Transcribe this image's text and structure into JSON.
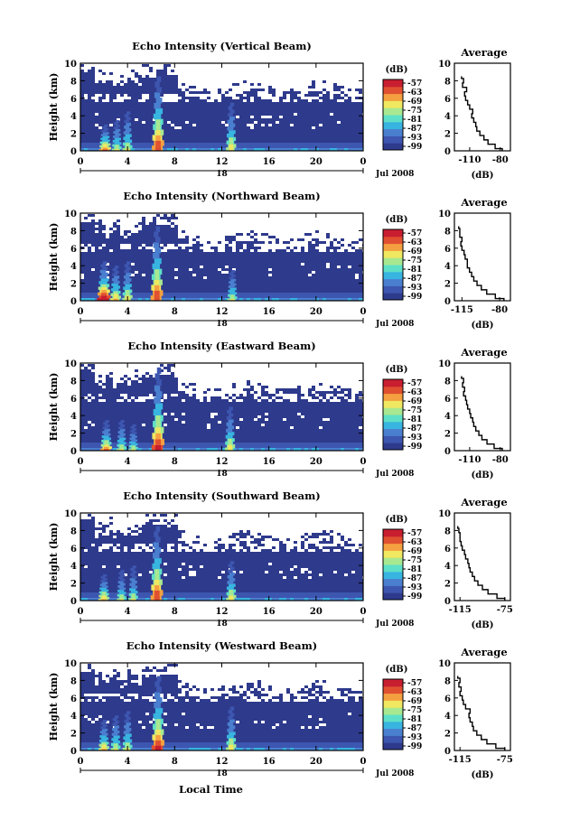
{
  "figure": {
    "xlabel": "Local Time",
    "date_label": "Jul 2008",
    "day_label": "18",
    "avg_title": "Average",
    "colorbar_unit": "(dB)",
    "avg_xlabel": "(dB)"
  },
  "colors": {
    "background": "#ffffff",
    "noise_floor": "#2e3a8c",
    "colormap": [
      "#2e3a8c",
      "#3d56b0",
      "#4a7fd0",
      "#38b4e0",
      "#5ee0c8",
      "#a8e890",
      "#f0e860",
      "#f4a040",
      "#e05030",
      "#c81e30"
    ]
  },
  "chart_data": [
    {
      "type": "heatmap",
      "title": "Echo Intensity (Vertical Beam)",
      "ylabel": "Height (km)",
      "xlim": [
        0,
        24
      ],
      "ylim": [
        0,
        10
      ],
      "xticks": [
        "0",
        "4",
        "8",
        "12",
        "16",
        "20",
        "0"
      ],
      "yticks": [
        "0",
        "2",
        "4",
        "6",
        "8",
        "10"
      ],
      "colorbar": {
        "unit": "(dB)",
        "ticks": [
          "-57",
          "-63",
          "-69",
          "-75",
          "-81",
          "-87",
          "-93",
          "-99"
        ]
      },
      "features": [
        {
          "time": 2.1,
          "top": 3.0,
          "strength": 0.75
        },
        {
          "time": 3.1,
          "top": 3.5,
          "strength": 0.5
        },
        {
          "time": 4.0,
          "top": 4.5,
          "strength": 0.5
        },
        {
          "time": 6.6,
          "top": 8.5,
          "strength": 0.8
        },
        {
          "time": 12.8,
          "top": 5.5,
          "strength": 0.55
        }
      ],
      "average_profile": {
        "title": "Average",
        "xlabel": "(dB)",
        "xticks": [
          "-110",
          "-80"
        ],
        "xlim": [
          -125,
          -70
        ],
        "height": [
          0,
          0.5,
          1,
          1.5,
          2,
          2.5,
          3,
          3.5,
          4,
          4.5,
          5,
          5.5,
          6,
          6.5,
          7,
          7.5,
          8,
          8.5
        ],
        "value": [
          -78,
          -85,
          -92,
          -96,
          -100,
          -103,
          -104,
          -106,
          -108,
          -107,
          -110,
          -112,
          -114,
          -115,
          -113,
          -117,
          -116,
          -118
        ]
      }
    },
    {
      "type": "heatmap",
      "title": "Echo Intensity (Northward Beam)",
      "ylabel": "Height (km)",
      "xlim": [
        0,
        24
      ],
      "ylim": [
        0,
        10
      ],
      "xticks": [
        "0",
        "4",
        "8",
        "12",
        "16",
        "20",
        "0"
      ],
      "yticks": [
        "0",
        "2",
        "4",
        "6",
        "8",
        "10"
      ],
      "colorbar": {
        "unit": "(dB)",
        "ticks": [
          "-57",
          "-63",
          "-69",
          "-75",
          "-81",
          "-87",
          "-93",
          "-99"
        ]
      },
      "features": [
        {
          "time": 2.0,
          "top": 4.5,
          "strength": 0.95
        },
        {
          "time": 3.0,
          "top": 4.0,
          "strength": 0.6
        },
        {
          "time": 4.0,
          "top": 4.5,
          "strength": 0.55
        },
        {
          "time": 6.5,
          "top": 8.5,
          "strength": 0.8
        },
        {
          "time": 12.9,
          "top": 3.5,
          "strength": 0.5
        }
      ],
      "average_profile": {
        "title": "Average",
        "xlabel": "(dB)",
        "xticks": [
          "-115",
          "-80"
        ],
        "xlim": [
          -122,
          -70
        ],
        "height": [
          0,
          0.5,
          1,
          1.5,
          2,
          2.5,
          3,
          3.5,
          4,
          4.5,
          5,
          5.5,
          6,
          6.5,
          7,
          7.5,
          8,
          8.5
        ],
        "value": [
          -76,
          -84,
          -92,
          -97,
          -101,
          -104,
          -106,
          -108,
          -110,
          -110,
          -112,
          -113,
          -115,
          -116,
          -115,
          -117,
          -117,
          -118
        ]
      }
    },
    {
      "type": "heatmap",
      "title": "Echo Intensity (Eastward Beam)",
      "ylabel": "Height (km)",
      "xlim": [
        0,
        24
      ],
      "ylim": [
        0,
        10
      ],
      "xticks": [
        "0",
        "4",
        "8",
        "12",
        "16",
        "20",
        "0"
      ],
      "yticks": [
        "0",
        "2",
        "4",
        "6",
        "8",
        "10"
      ],
      "colorbar": {
        "unit": "(dB)",
        "ticks": [
          "-57",
          "-63",
          "-69",
          "-75",
          "-81",
          "-87",
          "-93",
          "-99"
        ]
      },
      "features": [
        {
          "time": 2.2,
          "top": 3.5,
          "strength": 0.7
        },
        {
          "time": 3.5,
          "top": 3.5,
          "strength": 0.5
        },
        {
          "time": 4.5,
          "top": 3.0,
          "strength": 0.45
        },
        {
          "time": 6.6,
          "top": 9.5,
          "strength": 0.85
        },
        {
          "time": 12.7,
          "top": 5.0,
          "strength": 0.55
        }
      ],
      "average_profile": {
        "title": "Average",
        "xlabel": "(dB)",
        "xticks": [
          "-110",
          "-80"
        ],
        "xlim": [
          -125,
          -70
        ],
        "height": [
          0,
          0.5,
          1,
          1.5,
          2,
          2.5,
          3,
          3.5,
          4,
          4.5,
          5,
          5.5,
          6,
          6.5,
          7,
          7.5,
          8,
          8.5
        ],
        "value": [
          -78,
          -86,
          -93,
          -98,
          -101,
          -104,
          -106,
          -107,
          -109,
          -110,
          -112,
          -113,
          -114,
          -116,
          -115,
          -117,
          -116,
          -118
        ]
      }
    },
    {
      "type": "heatmap",
      "title": "Echo Intensity (Southward Beam)",
      "ylabel": "Height (km)",
      "xlim": [
        0,
        24
      ],
      "ylim": [
        0,
        10
      ],
      "xticks": [
        "0",
        "4",
        "8",
        "12",
        "16",
        "20",
        "0"
      ],
      "yticks": [
        "0",
        "2",
        "4",
        "6",
        "8",
        "10"
      ],
      "colorbar": {
        "unit": "(dB)",
        "ticks": [
          "-57",
          "-63",
          "-69",
          "-75",
          "-81",
          "-87",
          "-93",
          "-99"
        ]
      },
      "features": [
        {
          "time": 2.0,
          "top": 3.0,
          "strength": 0.65
        },
        {
          "time": 3.5,
          "top": 3.5,
          "strength": 0.45
        },
        {
          "time": 4.5,
          "top": 4.0,
          "strength": 0.45
        },
        {
          "time": 6.5,
          "top": 8.5,
          "strength": 0.8
        },
        {
          "time": 12.8,
          "top": 4.5,
          "strength": 0.55
        }
      ],
      "average_profile": {
        "title": "Average",
        "xlabel": "(dB)",
        "xticks": [
          "-115",
          "-75"
        ],
        "xlim": [
          -120,
          -70
        ],
        "height": [
          0,
          0.5,
          1,
          1.5,
          2,
          2.5,
          3,
          3.5,
          4,
          4.5,
          5,
          5.5,
          6,
          6.5,
          7,
          7.5,
          8,
          8.5
        ],
        "value": [
          -75,
          -82,
          -90,
          -95,
          -99,
          -102,
          -104,
          -106,
          -107,
          -108,
          -110,
          -111,
          -113,
          -114,
          -115,
          -115,
          -116,
          -117
        ]
      }
    },
    {
      "type": "heatmap",
      "title": "Echo Intensity (Westward Beam)",
      "ylabel": "Height (km)",
      "xlim": [
        0,
        24
      ],
      "ylim": [
        0,
        10
      ],
      "xticks": [
        "0",
        "4",
        "8",
        "12",
        "16",
        "20",
        "0"
      ],
      "yticks": [
        "0",
        "2",
        "4",
        "6",
        "8",
        "10"
      ],
      "colorbar": {
        "unit": "(dB)",
        "ticks": [
          "-57",
          "-63",
          "-69",
          "-75",
          "-81",
          "-87",
          "-93",
          "-99"
        ]
      },
      "features": [
        {
          "time": 2.0,
          "top": 3.5,
          "strength": 0.6
        },
        {
          "time": 3.0,
          "top": 4.0,
          "strength": 0.5
        },
        {
          "time": 4.0,
          "top": 4.5,
          "strength": 0.5
        },
        {
          "time": 6.6,
          "top": 8.5,
          "strength": 0.85
        },
        {
          "time": 12.8,
          "top": 5.0,
          "strength": 0.55
        }
      ],
      "average_profile": {
        "title": "Average",
        "xlabel": "(dB)",
        "xticks": [
          "-115",
          "-75"
        ],
        "xlim": [
          -120,
          -70
        ],
        "height": [
          0,
          0.5,
          1,
          1.5,
          2,
          2.5,
          3,
          3.5,
          4,
          4.5,
          5,
          5.5,
          6,
          6.5,
          7,
          7.5,
          8,
          8.5
        ],
        "value": [
          -75,
          -83,
          -91,
          -96,
          -100,
          -103,
          -104,
          -106,
          -107,
          -106,
          -110,
          -112,
          -113,
          -115,
          -114,
          -116,
          -115,
          -117
        ]
      }
    }
  ]
}
